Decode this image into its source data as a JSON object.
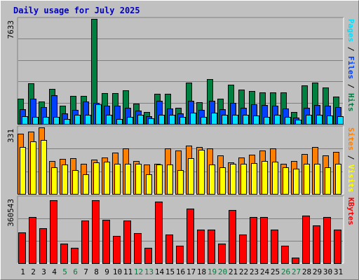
{
  "title": "Daily usage for July 2025",
  "colors": {
    "background": "#c0c0c0",
    "hits": "#008040",
    "files": "#0040ff",
    "pages": "#00e0ff",
    "visits": "#ff8000",
    "sites": "#ffff00",
    "kbytes": "#ff0000",
    "weekday_label": "#000000",
    "weekend_label": "#008040",
    "gridline": "#808080"
  },
  "side_labels": {
    "pages": "Pages",
    "files": "Files",
    "hits": "Hits",
    "sites": "Sites",
    "visits": "Visits",
    "kbytes": "KBytes",
    "separator": " / "
  },
  "chart_data": {
    "type": "bar",
    "title": "Daily usage for July 2025",
    "categories": [
      "1",
      "2",
      "3",
      "4",
      "5",
      "6",
      "7",
      "8",
      "9",
      "10",
      "11",
      "12",
      "13",
      "14",
      "15",
      "16",
      "17",
      "18",
      "19",
      "20",
      "21",
      "22",
      "23",
      "24",
      "25",
      "26",
      "27",
      "28",
      "29",
      "30",
      "31"
    ],
    "weekend_days": [
      "5",
      "6",
      "12",
      "13",
      "19",
      "20",
      "26",
      "27"
    ],
    "panels": [
      {
        "name": "hits-files-pages",
        "ymax_label": "7633",
        "ylim": [
          0,
          7633
        ],
        "series": [
          {
            "name": "Hits",
            "color": "#008040",
            "values": [
              1855,
              2965,
              1630,
              2552,
              1320,
              2050,
              2027,
              7633,
              2218,
              2218,
              2438,
              1487,
              880,
              2170,
              2170,
              1150,
              3020,
              1557,
              3245,
              1815,
              2853,
              2483,
              2412,
              2301,
              2301,
              2301,
              850,
              2779,
              3024,
              2634,
              2000
            ]
          },
          {
            "name": "Files",
            "color": "#0040ff",
            "values": [
              1050,
              1855,
              1221,
              2091,
              740,
              1032,
              1650,
              1524,
              1304,
              1304,
              1185,
              980,
              580,
              1668,
              1110,
              770,
              1703,
              1007,
              1668,
              1060,
              1520,
              1192,
              1412,
              1396,
              1341,
              1101,
              450,
              1180,
              1367,
              1341,
              1201
            ]
          },
          {
            "name": "Pages",
            "color": "#00e0ff",
            "values": [
              570,
              500,
              490,
              500,
              370,
              640,
              680,
              1431,
              680,
              370,
              490,
              680,
              420,
              640,
              640,
              490,
              830,
              500,
              810,
              650,
              670,
              680,
              610,
              520,
              680,
              530,
              310,
              680,
              680,
              610,
              540
            ]
          }
        ]
      },
      {
        "name": "visits-sites",
        "ymax_label": "331",
        "ylim": [
          0,
          331
        ],
        "series": [
          {
            "name": "Visits",
            "color": "#ff8000",
            "values": [
              300,
              310,
              331,
              165,
              174,
              176,
              150,
              172,
              180,
              205,
              228,
              163,
              145,
              150,
              225,
              215,
              240,
              235,
              228,
              193,
              156,
              180,
              195,
              215,
              228,
              150,
              165,
              198,
              233,
              191,
              210
            ]
          },
          {
            "name": "Sites",
            "color": "#ffff00",
            "values": [
              235,
              261,
              268,
              131,
              145,
              118,
              97,
              156,
              159,
              150,
              150,
              150,
              97,
              145,
              145,
              118,
              176,
              221,
              145,
              132,
              150,
              150,
              153,
              164,
              159,
              134,
              127,
              150,
              150,
              132,
              150
            ]
          }
        ]
      },
      {
        "name": "kbytes",
        "ymax_label": "360543",
        "ylim": [
          0,
          360543
        ],
        "series": [
          {
            "name": "KBytes",
            "color": "#ff0000",
            "values": [
              176880,
              264930,
              198870,
              360543,
              114000,
              88000,
              242550,
              360543,
              247140,
              154920,
              242550,
              173580,
              88000,
              352710,
              165000,
              99000,
              310470,
              192000,
              192000,
              114000,
              305490,
              165000,
              264930,
              264930,
              192000,
              99000,
              33000,
              270720,
              216320,
              264930,
              192000
            ]
          }
        ]
      }
    ]
  }
}
